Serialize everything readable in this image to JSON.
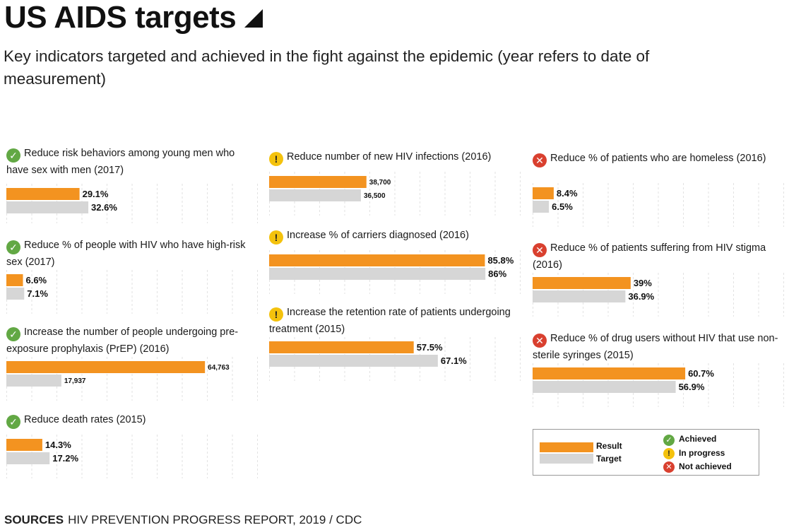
{
  "title": "US AIDS targets",
  "subtitle": "Key indicators targeted and achieved in the fight against the epidemic (year refers to date of measurement)",
  "sources_label": "SOURCES",
  "sources_text": "HIV PREVENTION PROGRESS REPORT, 2019 /  CDC",
  "colors": {
    "result": "#f39320",
    "target": "#d6d6d6",
    "achieved": "#62a844",
    "in_progress": "#f4c20d",
    "not_achieved": "#d9402f"
  },
  "legend": {
    "result": "Result",
    "target": "Target",
    "achieved": "Achieved",
    "in_progress": "In progress",
    "not_achieved": "Not achieved"
  },
  "chart_data": [
    {
      "type": "bar",
      "title": "Reduce risk behaviors among young men who have sex with men (2017)",
      "status": "achieved",
      "unit": "%",
      "series": [
        {
          "name": "Result",
          "values": [
            29.1
          ],
          "labels": [
            "29.1%"
          ]
        },
        {
          "name": "Target",
          "values": [
            32.6
          ],
          "labels": [
            "32.6%"
          ]
        }
      ],
      "xlim": [
        0,
        100
      ]
    },
    {
      "type": "bar",
      "title": "Reduce % of people with HIV who have high-risk sex (2017)",
      "status": "achieved",
      "unit": "%",
      "series": [
        {
          "name": "Result",
          "values": [
            6.6
          ],
          "labels": [
            "6.6%"
          ]
        },
        {
          "name": "Target",
          "values": [
            7.1
          ],
          "labels": [
            "7.1%"
          ]
        }
      ],
      "xlim": [
        0,
        100
      ]
    },
    {
      "type": "bar",
      "title": "Increase the number of people undergoing pre-exposure prophylaxis (PrEP) (2016)",
      "status": "achieved",
      "unit": "people",
      "series": [
        {
          "name": "Result",
          "values": [
            64763
          ],
          "labels": [
            "64,763"
          ]
        },
        {
          "name": "Target",
          "values": [
            17937
          ],
          "labels": [
            "17,937"
          ]
        }
      ],
      "xlim": [
        0,
        82000
      ]
    },
    {
      "type": "bar",
      "title": "Reduce death rates (2015)",
      "status": "achieved",
      "unit": "%",
      "series": [
        {
          "name": "Result",
          "values": [
            14.3
          ],
          "labels": [
            "14.3%"
          ]
        },
        {
          "name": "Target",
          "values": [
            17.2
          ],
          "labels": [
            "17.2%"
          ]
        }
      ],
      "xlim": [
        0,
        100
      ]
    },
    {
      "type": "bar",
      "title": "Reduce number of new HIV infections (2016)",
      "status": "in_progress",
      "unit": "infections",
      "series": [
        {
          "name": "Result",
          "values": [
            38700
          ],
          "labels": [
            "38,700"
          ]
        },
        {
          "name": "Target",
          "values": [
            36500
          ],
          "labels": [
            "36,500"
          ]
        }
      ],
      "xlim": [
        0,
        100000
      ]
    },
    {
      "type": "bar",
      "title": "Increase % of carriers diagnosed (2016)",
      "status": "in_progress",
      "unit": "%",
      "series": [
        {
          "name": "Result",
          "values": [
            85.8
          ],
          "labels": [
            "85.8%"
          ]
        },
        {
          "name": "Target",
          "values": [
            86
          ],
          "labels": [
            "86%"
          ]
        }
      ],
      "xlim": [
        0,
        100
      ]
    },
    {
      "type": "bar",
      "title": "Increase the retention rate of patients undergoing treatment (2015)",
      "status": "in_progress",
      "unit": "%",
      "series": [
        {
          "name": "Result",
          "values": [
            57.5
          ],
          "labels": [
            "57.5%"
          ]
        },
        {
          "name": "Target",
          "values": [
            67.1
          ],
          "labels": [
            "67.1%"
          ]
        }
      ],
      "xlim": [
        0,
        100
      ]
    },
    {
      "type": "bar",
      "title": "Reduce % of patients who are homeless (2016)",
      "status": "not_achieved",
      "unit": "%",
      "series": [
        {
          "name": "Result",
          "values": [
            8.4
          ],
          "labels": [
            "8.4%"
          ]
        },
        {
          "name": "Target",
          "values": [
            6.5
          ],
          "labels": [
            "6.5%"
          ]
        }
      ],
      "xlim": [
        0,
        100
      ]
    },
    {
      "type": "bar",
      "title": "Reduce % of patients suffering from HIV stigma (2016)",
      "status": "not_achieved",
      "unit": "%",
      "series": [
        {
          "name": "Result",
          "values": [
            39
          ],
          "labels": [
            "39%"
          ]
        },
        {
          "name": "Target",
          "values": [
            36.9
          ],
          "labels": [
            "36.9%"
          ]
        }
      ],
      "xlim": [
        0,
        100
      ]
    },
    {
      "type": "bar",
      "title": "Reduce % of drug users without HIV that use non-sterile syringes (2015)",
      "status": "not_achieved",
      "unit": "%",
      "series": [
        {
          "name": "Result",
          "values": [
            60.7
          ],
          "labels": [
            "60.7%"
          ]
        },
        {
          "name": "Target",
          "values": [
            56.9
          ],
          "labels": [
            "56.9%"
          ]
        }
      ],
      "xlim": [
        0,
        100
      ]
    }
  ]
}
